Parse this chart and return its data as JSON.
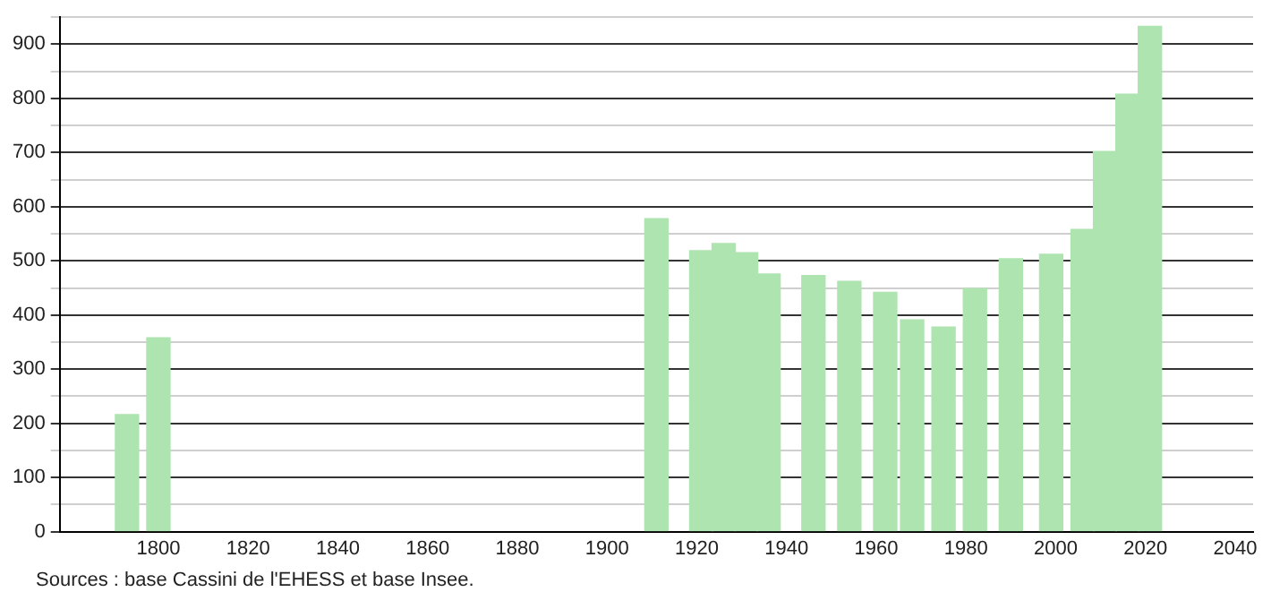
{
  "chart_data": {
    "type": "bar",
    "x": [
      1793,
      1800,
      1911,
      1921,
      1926,
      1931,
      1936,
      1946,
      1954,
      1962,
      1968,
      1975,
      1982,
      1990,
      1999,
      2006,
      2011,
      2016,
      2021
    ],
    "values": [
      216,
      358,
      578,
      519,
      532,
      515,
      476,
      473,
      462,
      442,
      391,
      378,
      449,
      504,
      512,
      558,
      702,
      808,
      933
    ],
    "color": "#aee4b0",
    "xlim": [
      1778,
      2044
    ],
    "xticks": [
      1800,
      1820,
      1840,
      1860,
      1880,
      1900,
      1920,
      1940,
      1960,
      1980,
      2000,
      2020,
      2040
    ],
    "ylim": [
      0,
      950
    ],
    "yticks": [
      0,
      {
        "value": 50,
        "label": null
      },
      100,
      {
        "value": 150,
        "label": null
      },
      200,
      {
        "value": 250,
        "label": null
      },
      300,
      {
        "value": 350,
        "label": null
      },
      400,
      {
        "value": 450,
        "label": null
      },
      500,
      {
        "value": 550,
        "label": null
      },
      600,
      {
        "value": 650,
        "label": null
      },
      700,
      {
        "value": 750,
        "label": null
      },
      800,
      {
        "value": 850,
        "label": null
      },
      900,
      {
        "value": 950,
        "label": null
      }
    ],
    "grid": "y",
    "legend": false,
    "annotations": [
      "Sources : base Cassini de l'EHESS et base Insee."
    ]
  }
}
